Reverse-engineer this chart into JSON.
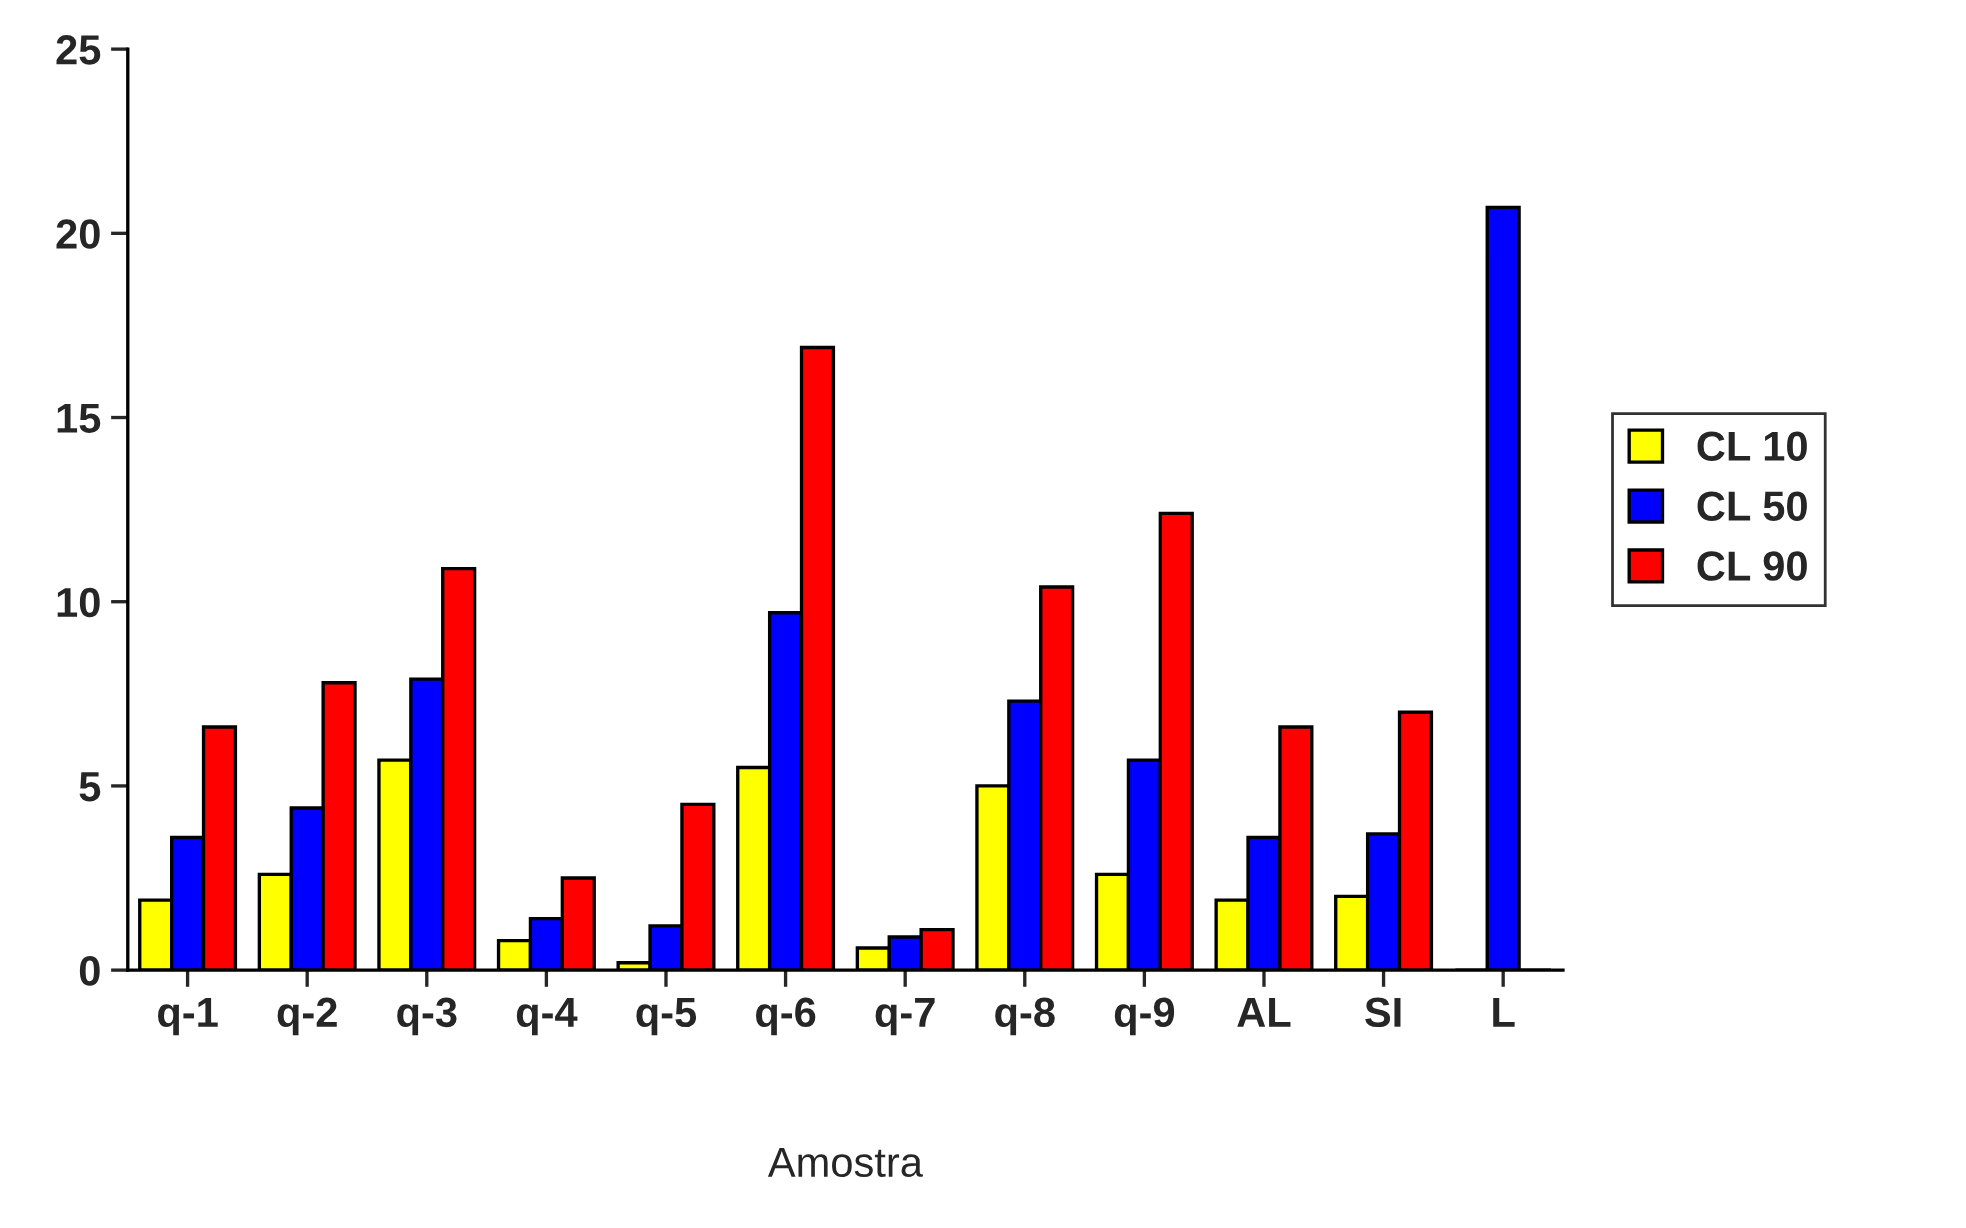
{
  "chart_data": {
    "type": "bar",
    "xlabel": "Amostra",
    "categories": [
      "q-1",
      "q-2",
      "q-3",
      "q-4",
      "q-5",
      "q-6",
      "q-7",
      "q-8",
      "q-9",
      "AL",
      "SI",
      "L"
    ],
    "series": [
      {
        "name": "CL 10",
        "color": "#ffff00",
        "values": [
          1.9,
          2.6,
          5.7,
          0.8,
          0.2,
          5.5,
          0.6,
          5.0,
          2.6,
          1.9,
          2.0,
          0
        ]
      },
      {
        "name": "CL 50",
        "color": "#0000ff",
        "values": [
          3.6,
          4.4,
          7.9,
          1.4,
          1.2,
          9.7,
          0.9,
          7.3,
          5.7,
          3.6,
          3.7,
          20.7
        ]
      },
      {
        "name": "CL 90",
        "color": "#ff0000",
        "values": [
          6.6,
          7.8,
          10.9,
          2.5,
          4.5,
          16.9,
          1.1,
          10.4,
          12.4,
          6.6,
          7.0,
          0
        ]
      }
    ],
    "ylim": [
      0,
      25
    ],
    "yticks": [
      0,
      5,
      10,
      15,
      20,
      25
    ],
    "grid": false,
    "legend": "right"
  }
}
